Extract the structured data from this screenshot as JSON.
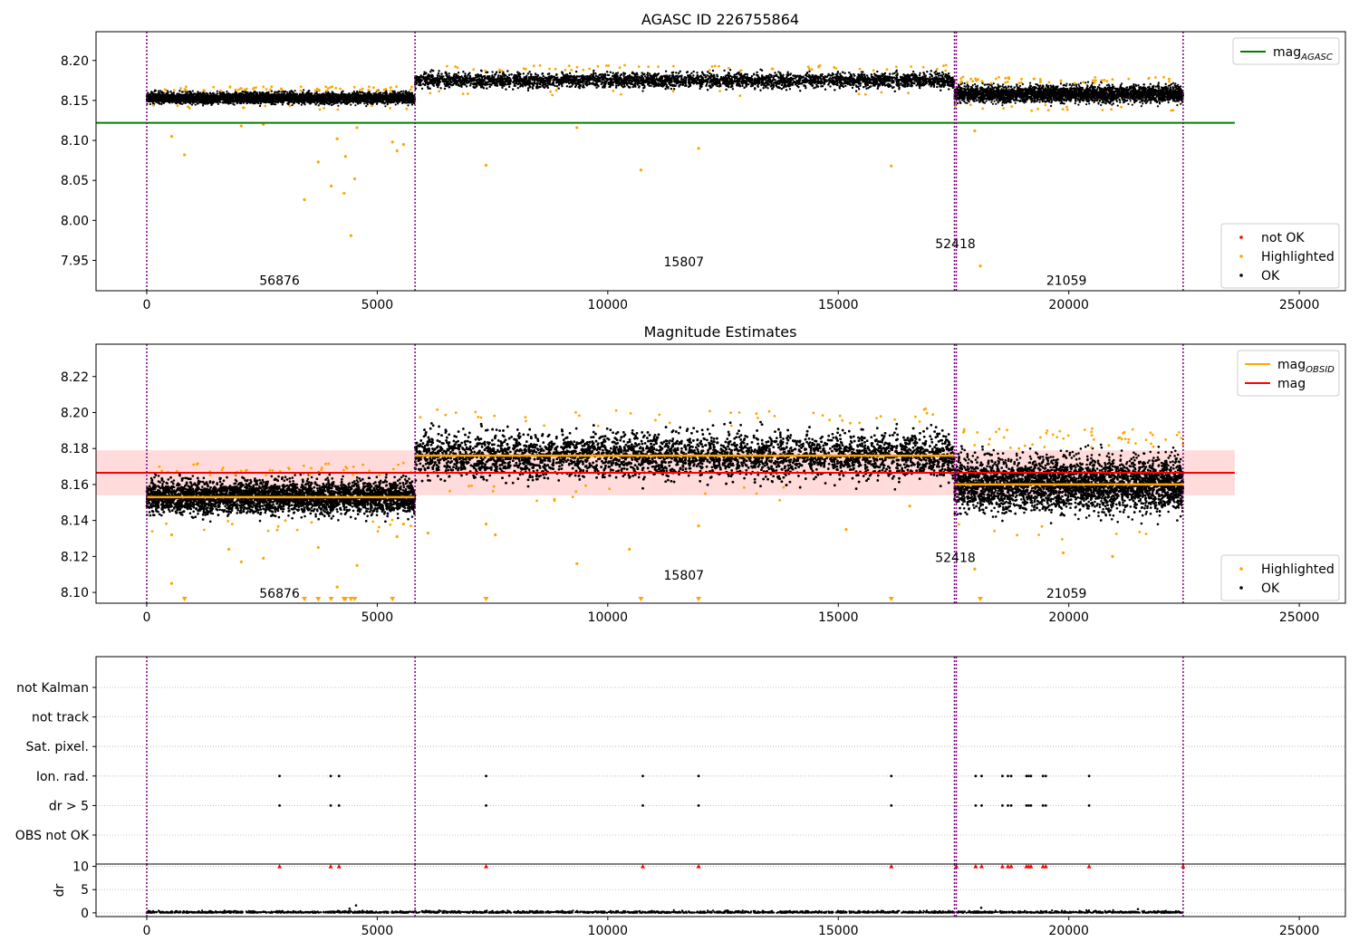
{
  "figure": {
    "title": "AGASC ID 226755864",
    "panel2_title": "Magnitude Estimates"
  },
  "chart_data": [
    {
      "type": "scatter",
      "title": "AGASC ID 226755864",
      "xlim": [
        -1100,
        26000
      ],
      "ylim": [
        7.912,
        8.236
      ],
      "xticks": [
        0,
        5000,
        10000,
        15000,
        20000,
        25000
      ],
      "yticks": [
        7.95,
        8.0,
        8.05,
        8.1,
        8.15,
        8.2
      ],
      "legend_upper": {
        "placement": "top-right",
        "entries": [
          {
            "label": "mag",
            "sub": "AGASC",
            "color": "#008000",
            "kind": "line"
          }
        ]
      },
      "legend_lower": {
        "placement": "bottom-right",
        "entries": [
          {
            "label": "not OK",
            "color": "#ff0000",
            "kind": "dot"
          },
          {
            "label": "Highlighted",
            "color": "#ffa500",
            "kind": "dot"
          },
          {
            "label": "OK",
            "color": "#000000",
            "kind": "dot"
          }
        ]
      },
      "mag_agasc": {
        "value": 8.122,
        "x_range": [
          -1100,
          23600
        ]
      },
      "obsids": [
        {
          "label": "56876",
          "x_start": 0,
          "x_end": 5820,
          "label_x": 2880,
          "label_y": 7.925
        },
        {
          "label": "15807",
          "x_start": 5820,
          "x_end": 17520,
          "label_x": 11650,
          "label_y": 7.948
        },
        {
          "label": "52418",
          "x_start": 17520,
          "x_end": 17560,
          "label_x": 17540,
          "label_y": 7.971
        },
        {
          "label": "21059",
          "x_start": 17560,
          "x_end": 22480,
          "label_x": 19950,
          "label_y": 7.925
        }
      ],
      "bands": [
        {
          "x_start": 0,
          "x_end": 5820,
          "center": 8.153,
          "spread": 0.006
        },
        {
          "x_start": 5820,
          "x_end": 17520,
          "center": 8.175,
          "spread": 0.008
        },
        {
          "x_start": 17520,
          "x_end": 22480,
          "center": 8.158,
          "spread": 0.009
        }
      ],
      "highlighted": [
        [
          540,
          8.105
        ],
        [
          820,
          8.082
        ],
        [
          2050,
          8.118
        ],
        [
          2530,
          8.12
        ],
        [
          3420,
          8.026
        ],
        [
          3720,
          8.073
        ],
        [
          4000,
          8.043
        ],
        [
          4130,
          8.102
        ],
        [
          4280,
          8.034
        ],
        [
          4310,
          8.08
        ],
        [
          4430,
          7.981
        ],
        [
          4510,
          8.052
        ],
        [
          4560,
          8.116
        ],
        [
          5330,
          8.098
        ],
        [
          5430,
          8.087
        ],
        [
          5570,
          8.095
        ],
        [
          7360,
          8.069
        ],
        [
          9330,
          8.116
        ],
        [
          10720,
          8.063
        ],
        [
          11970,
          8.09
        ],
        [
          16150,
          8.068
        ],
        [
          17960,
          8.112
        ],
        [
          18080,
          7.943
        ]
      ],
      "vlines": [
        0,
        5820,
        17520,
        17560,
        22480
      ]
    },
    {
      "type": "scatter",
      "title": "Magnitude Estimates",
      "xlim": [
        -1100,
        26000
      ],
      "ylim": [
        8.094,
        8.238
      ],
      "xticks": [
        0,
        5000,
        10000,
        15000,
        20000,
        25000
      ],
      "yticks": [
        8.1,
        8.12,
        8.14,
        8.16,
        8.18,
        8.2,
        8.22
      ],
      "legend_upper": {
        "placement": "top-right",
        "entries": [
          {
            "label": "mag",
            "sub": "OBSID",
            "color": "#ffa500",
            "kind": "line"
          },
          {
            "label": "mag",
            "color": "#ff0000",
            "kind": "line"
          }
        ]
      },
      "legend_lower": {
        "placement": "bottom-right",
        "entries": [
          {
            "label": "Highlighted",
            "color": "#ffa500",
            "kind": "dot"
          },
          {
            "label": "OK",
            "color": "#000000",
            "kind": "dot"
          }
        ]
      },
      "mag": {
        "value": 8.1665,
        "band": [
          8.154,
          8.179
        ],
        "x_range": [
          -1100,
          23600
        ]
      },
      "mag_obsid": [
        {
          "x_start": 0,
          "x_end": 5820,
          "value": 8.153
        },
        {
          "x_start": 5820,
          "x_end": 17520,
          "value": 8.176
        },
        {
          "x_start": 17520,
          "x_end": 22480,
          "value": 8.16
        }
      ],
      "obsids": [
        {
          "label": "56876",
          "label_x": 2880,
          "label_y": 8.0995
        },
        {
          "label": "15807",
          "label_x": 11650,
          "label_y": 8.1095
        },
        {
          "label": "52418",
          "label_x": 17540,
          "label_y": 8.1195
        },
        {
          "label": "21059",
          "label_x": 19950,
          "label_y": 8.0995
        }
      ],
      "bands": [
        {
          "x_start": 0,
          "x_end": 5820,
          "center": 8.153,
          "spread": 0.008
        },
        {
          "x_start": 5820,
          "x_end": 17520,
          "center": 8.176,
          "spread": 0.011
        },
        {
          "x_start": 17520,
          "x_end": 22480,
          "center": 8.16,
          "spread": 0.013
        }
      ],
      "highlighted": [
        [
          540,
          8.132
        ],
        [
          540,
          8.105
        ],
        [
          1780,
          8.124
        ],
        [
          2050,
          8.117
        ],
        [
          2530,
          8.119
        ],
        [
          3720,
          8.125
        ],
        [
          4130,
          8.103
        ],
        [
          4560,
          8.115
        ],
        [
          5430,
          8.131
        ],
        [
          5570,
          8.138
        ],
        [
          6100,
          8.133
        ],
        [
          7360,
          8.138
        ],
        [
          7560,
          8.132
        ],
        [
          9330,
          8.116
        ],
        [
          10470,
          8.124
        ],
        [
          11970,
          8.137
        ],
        [
          15170,
          8.135
        ],
        [
          16550,
          8.148
        ],
        [
          17960,
          8.113
        ],
        [
          19880,
          8.122
        ],
        [
          20950,
          8.12
        ]
      ],
      "out_of_range_markers": [
        820,
        3420,
        3720,
        4000,
        4280,
        4310,
        4430,
        4510,
        5330,
        7360,
        10720,
        11970,
        16150,
        18080
      ],
      "vlines": [
        0,
        5820,
        17520,
        17560,
        22480
      ]
    },
    {
      "type": "scatter",
      "title": "",
      "xlim": [
        -1100,
        26000
      ],
      "xticks": [
        0,
        5000,
        10000,
        15000,
        20000,
        25000
      ],
      "flag_labels": [
        "not Kalman",
        "not track",
        "Sat. pixel.",
        "Ion. rad.",
        "dr > 5",
        "OBS not OK"
      ],
      "flag_points": {
        "Ion. rad.": [
          2880,
          3990,
          4170,
          7360,
          10760,
          11970,
          16150,
          17980,
          18110,
          18560,
          18680,
          18750,
          19080,
          19130,
          19180,
          19440,
          19500,
          20440
        ],
        "dr > 5": [
          2880,
          3990,
          4170,
          7360,
          10760,
          11970,
          16150,
          17980,
          18110,
          18560,
          18680,
          18750,
          19080,
          19130,
          19180,
          19440,
          19500,
          20440
        ]
      },
      "dr": {
        "ylabel": "dr",
        "yticks": [
          0,
          5,
          10
        ],
        "ylim": [
          -0.8,
          10.5
        ],
        "clipped_marker_x": [
          2880,
          3990,
          4170,
          7360,
          10760,
          11970,
          16150,
          17560,
          17980,
          18110,
          18560,
          18680,
          18750,
          19080,
          19130,
          19180,
          19440,
          19500,
          20440,
          22480
        ],
        "spikes": [
          [
            4540,
            1.6
          ],
          [
            4400,
            0.9
          ],
          [
            18100,
            1.1
          ],
          [
            21500,
            0.8
          ]
        ]
      },
      "vlines": [
        0,
        5820,
        17520,
        17560,
        22480
      ]
    }
  ]
}
